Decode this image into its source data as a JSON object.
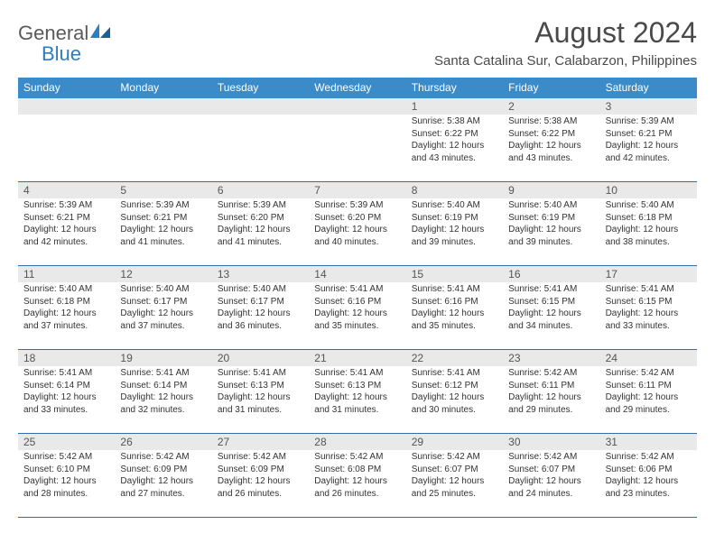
{
  "brand": {
    "general": "General",
    "blue": "Blue"
  },
  "title": "August 2024",
  "location": "Santa Catalina Sur, Calabarzon, Philippines",
  "colors": {
    "header_bg": "#3b8bc9",
    "header_text": "#ffffff",
    "daynum_bg": "#e9e9e9",
    "row_border": "#2f6ea8",
    "text": "#333333",
    "title_text": "#4a4a4a",
    "logo_gray": "#5a5a5a",
    "logo_blue": "#2f7cc0"
  },
  "weekdays": [
    "Sunday",
    "Monday",
    "Tuesday",
    "Wednesday",
    "Thursday",
    "Friday",
    "Saturday"
  ],
  "weeks": [
    [
      {
        "empty": true
      },
      {
        "empty": true
      },
      {
        "empty": true
      },
      {
        "empty": true
      },
      {
        "day": "1",
        "sunrise": "Sunrise: 5:38 AM",
        "sunset": "Sunset: 6:22 PM",
        "daylight1": "Daylight: 12 hours",
        "daylight2": "and 43 minutes."
      },
      {
        "day": "2",
        "sunrise": "Sunrise: 5:38 AM",
        "sunset": "Sunset: 6:22 PM",
        "daylight1": "Daylight: 12 hours",
        "daylight2": "and 43 minutes."
      },
      {
        "day": "3",
        "sunrise": "Sunrise: 5:39 AM",
        "sunset": "Sunset: 6:21 PM",
        "daylight1": "Daylight: 12 hours",
        "daylight2": "and 42 minutes."
      }
    ],
    [
      {
        "day": "4",
        "sunrise": "Sunrise: 5:39 AM",
        "sunset": "Sunset: 6:21 PM",
        "daylight1": "Daylight: 12 hours",
        "daylight2": "and 42 minutes."
      },
      {
        "day": "5",
        "sunrise": "Sunrise: 5:39 AM",
        "sunset": "Sunset: 6:21 PM",
        "daylight1": "Daylight: 12 hours",
        "daylight2": "and 41 minutes."
      },
      {
        "day": "6",
        "sunrise": "Sunrise: 5:39 AM",
        "sunset": "Sunset: 6:20 PM",
        "daylight1": "Daylight: 12 hours",
        "daylight2": "and 41 minutes."
      },
      {
        "day": "7",
        "sunrise": "Sunrise: 5:39 AM",
        "sunset": "Sunset: 6:20 PM",
        "daylight1": "Daylight: 12 hours",
        "daylight2": "and 40 minutes."
      },
      {
        "day": "8",
        "sunrise": "Sunrise: 5:40 AM",
        "sunset": "Sunset: 6:19 PM",
        "daylight1": "Daylight: 12 hours",
        "daylight2": "and 39 minutes."
      },
      {
        "day": "9",
        "sunrise": "Sunrise: 5:40 AM",
        "sunset": "Sunset: 6:19 PM",
        "daylight1": "Daylight: 12 hours",
        "daylight2": "and 39 minutes."
      },
      {
        "day": "10",
        "sunrise": "Sunrise: 5:40 AM",
        "sunset": "Sunset: 6:18 PM",
        "daylight1": "Daylight: 12 hours",
        "daylight2": "and 38 minutes."
      }
    ],
    [
      {
        "day": "11",
        "sunrise": "Sunrise: 5:40 AM",
        "sunset": "Sunset: 6:18 PM",
        "daylight1": "Daylight: 12 hours",
        "daylight2": "and 37 minutes."
      },
      {
        "day": "12",
        "sunrise": "Sunrise: 5:40 AM",
        "sunset": "Sunset: 6:17 PM",
        "daylight1": "Daylight: 12 hours",
        "daylight2": "and 37 minutes."
      },
      {
        "day": "13",
        "sunrise": "Sunrise: 5:40 AM",
        "sunset": "Sunset: 6:17 PM",
        "daylight1": "Daylight: 12 hours",
        "daylight2": "and 36 minutes."
      },
      {
        "day": "14",
        "sunrise": "Sunrise: 5:41 AM",
        "sunset": "Sunset: 6:16 PM",
        "daylight1": "Daylight: 12 hours",
        "daylight2": "and 35 minutes."
      },
      {
        "day": "15",
        "sunrise": "Sunrise: 5:41 AM",
        "sunset": "Sunset: 6:16 PM",
        "daylight1": "Daylight: 12 hours",
        "daylight2": "and 35 minutes."
      },
      {
        "day": "16",
        "sunrise": "Sunrise: 5:41 AM",
        "sunset": "Sunset: 6:15 PM",
        "daylight1": "Daylight: 12 hours",
        "daylight2": "and 34 minutes."
      },
      {
        "day": "17",
        "sunrise": "Sunrise: 5:41 AM",
        "sunset": "Sunset: 6:15 PM",
        "daylight1": "Daylight: 12 hours",
        "daylight2": "and 33 minutes."
      }
    ],
    [
      {
        "day": "18",
        "sunrise": "Sunrise: 5:41 AM",
        "sunset": "Sunset: 6:14 PM",
        "daylight1": "Daylight: 12 hours",
        "daylight2": "and 33 minutes."
      },
      {
        "day": "19",
        "sunrise": "Sunrise: 5:41 AM",
        "sunset": "Sunset: 6:14 PM",
        "daylight1": "Daylight: 12 hours",
        "daylight2": "and 32 minutes."
      },
      {
        "day": "20",
        "sunrise": "Sunrise: 5:41 AM",
        "sunset": "Sunset: 6:13 PM",
        "daylight1": "Daylight: 12 hours",
        "daylight2": "and 31 minutes."
      },
      {
        "day": "21",
        "sunrise": "Sunrise: 5:41 AM",
        "sunset": "Sunset: 6:13 PM",
        "daylight1": "Daylight: 12 hours",
        "daylight2": "and 31 minutes."
      },
      {
        "day": "22",
        "sunrise": "Sunrise: 5:41 AM",
        "sunset": "Sunset: 6:12 PM",
        "daylight1": "Daylight: 12 hours",
        "daylight2": "and 30 minutes."
      },
      {
        "day": "23",
        "sunrise": "Sunrise: 5:42 AM",
        "sunset": "Sunset: 6:11 PM",
        "daylight1": "Daylight: 12 hours",
        "daylight2": "and 29 minutes."
      },
      {
        "day": "24",
        "sunrise": "Sunrise: 5:42 AM",
        "sunset": "Sunset: 6:11 PM",
        "daylight1": "Daylight: 12 hours",
        "daylight2": "and 29 minutes."
      }
    ],
    [
      {
        "day": "25",
        "sunrise": "Sunrise: 5:42 AM",
        "sunset": "Sunset: 6:10 PM",
        "daylight1": "Daylight: 12 hours",
        "daylight2": "and 28 minutes."
      },
      {
        "day": "26",
        "sunrise": "Sunrise: 5:42 AM",
        "sunset": "Sunset: 6:09 PM",
        "daylight1": "Daylight: 12 hours",
        "daylight2": "and 27 minutes."
      },
      {
        "day": "27",
        "sunrise": "Sunrise: 5:42 AM",
        "sunset": "Sunset: 6:09 PM",
        "daylight1": "Daylight: 12 hours",
        "daylight2": "and 26 minutes."
      },
      {
        "day": "28",
        "sunrise": "Sunrise: 5:42 AM",
        "sunset": "Sunset: 6:08 PM",
        "daylight1": "Daylight: 12 hours",
        "daylight2": "and 26 minutes."
      },
      {
        "day": "29",
        "sunrise": "Sunrise: 5:42 AM",
        "sunset": "Sunset: 6:07 PM",
        "daylight1": "Daylight: 12 hours",
        "daylight2": "and 25 minutes."
      },
      {
        "day": "30",
        "sunrise": "Sunrise: 5:42 AM",
        "sunset": "Sunset: 6:07 PM",
        "daylight1": "Daylight: 12 hours",
        "daylight2": "and 24 minutes."
      },
      {
        "day": "31",
        "sunrise": "Sunrise: 5:42 AM",
        "sunset": "Sunset: 6:06 PM",
        "daylight1": "Daylight: 12 hours",
        "daylight2": "and 23 minutes."
      }
    ]
  ]
}
